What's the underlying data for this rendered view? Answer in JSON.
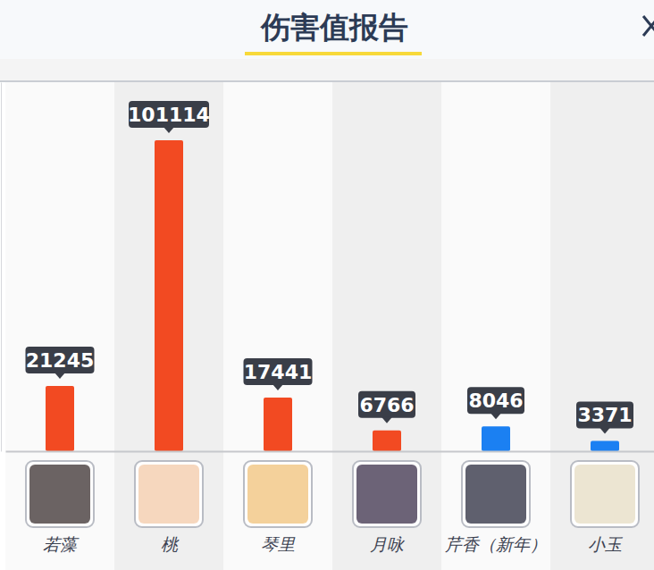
{
  "chart_data": {
    "type": "bar",
    "title": "伤害值报告",
    "categories": [
      "若藻",
      "桃",
      "琴里",
      "月咏",
      "芹香（新年）",
      "小玉"
    ],
    "values": [
      21245,
      101114,
      17441,
      6766,
      8046,
      3371
    ],
    "colors": [
      "#f24a22",
      "#f24a22",
      "#f24a22",
      "#f24a22",
      "#1b80f2",
      "#1b80f2"
    ],
    "ylim": [
      0,
      120000
    ],
    "data_labels": true,
    "tick_labels": "x",
    "grid": false
  }
}
